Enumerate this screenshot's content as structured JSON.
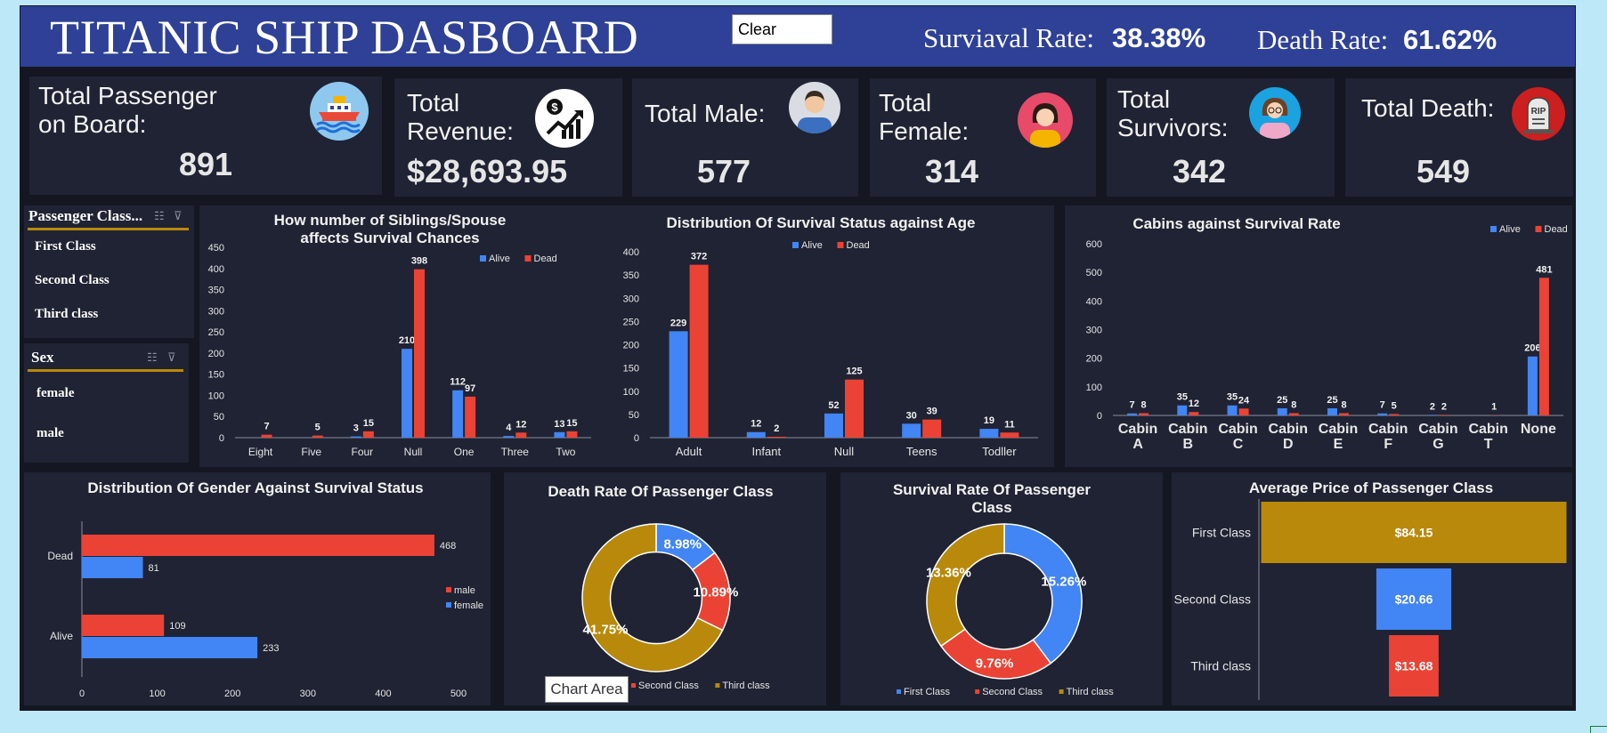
{
  "header": {
    "title": "TITANIC SHIP DASBOARD",
    "clear_label": "Clear",
    "survival_label": "Surviaval Rate:",
    "survival_value": "38.38%",
    "death_label": "Death Rate:",
    "death_value": "61.62%"
  },
  "kpis": [
    {
      "label": "Total Passenger\n on Board:",
      "value": "891",
      "icon": "cruise-ship-icon"
    },
    {
      "label": "Total\nRevenue:",
      "value": "$28,693.95",
      "icon": "money-growth-icon"
    },
    {
      "label": "Total Male:",
      "value": "577",
      "icon": "male-avatar-icon"
    },
    {
      "label": "Total\nFemale:",
      "value": "314",
      "icon": "female-avatar-icon"
    },
    {
      "label": "Total\nSurvivors:",
      "value": "342",
      "icon": "survivor-avatar-icon"
    },
    {
      "label": "Total Death:",
      "value": "549",
      "icon": "tombstone-icon"
    }
  ],
  "slicers": {
    "passenger_class": {
      "title": "Passenger Class...",
      "items": [
        "First Class",
        "Second Class",
        "Third class"
      ]
    },
    "sex": {
      "title": "Sex",
      "items": [
        "female",
        "male"
      ]
    }
  },
  "tooltip": "Chart Area",
  "colors": {
    "alive": "#4285f4",
    "dead": "#ea4335",
    "third": "#b8890b",
    "bg": "#1f2333",
    "header": "#2e4196"
  },
  "chart_data": [
    {
      "id": "siblings",
      "type": "bar",
      "title": "How number of Siblings/Spouse\naffects Survival Chances",
      "categories": [
        "Eight",
        "Five",
        "Four",
        "Null",
        "One",
        "Three",
        "Two"
      ],
      "series": [
        {
          "name": "Alive",
          "values": [
            0,
            0,
            3,
            210,
            112,
            4,
            13
          ]
        },
        {
          "name": "Dead",
          "values": [
            7,
            5,
            15,
            398,
            97,
            12,
            15
          ]
        }
      ],
      "ylim": [
        0,
        450
      ],
      "yticks": [
        0,
        50,
        100,
        150,
        200,
        250,
        300,
        350,
        400,
        450
      ],
      "legend": "top-right"
    },
    {
      "id": "age",
      "type": "bar",
      "title": "Distribution Of Survival Status against Age",
      "categories": [
        "Adult",
        "Infant",
        "Null",
        "Teens",
        "Todller"
      ],
      "series": [
        {
          "name": "Alive",
          "values": [
            229,
            12,
            52,
            30,
            19
          ]
        },
        {
          "name": "Dead",
          "values": [
            372,
            2,
            125,
            39,
            11
          ]
        }
      ],
      "ylim": [
        0,
        400
      ],
      "yticks": [
        0,
        50,
        100,
        150,
        200,
        250,
        300,
        350,
        400
      ],
      "legend": "top-center"
    },
    {
      "id": "cabins",
      "type": "bar",
      "title": "Cabins against Survival Rate",
      "categories": [
        "Cabin\nA",
        "Cabin\nB",
        "Cabin\nC",
        "Cabin\nD",
        "Cabin\nE",
        "Cabin\nF",
        "Cabin\nG",
        "Cabin\nT",
        "None"
      ],
      "series": [
        {
          "name": "Alive",
          "values": [
            7,
            35,
            35,
            25,
            25,
            7,
            2,
            0,
            206
          ]
        },
        {
          "name": "Dead",
          "values": [
            8,
            12,
            24,
            8,
            8,
            5,
            2,
            1,
            481
          ]
        }
      ],
      "ylim": [
        0,
        600
      ],
      "yticks": [
        0,
        100,
        200,
        300,
        400,
        500,
        600
      ],
      "legend": "top-right"
    },
    {
      "id": "gender",
      "type": "bar",
      "orientation": "horizontal",
      "title": "Distribution Of Gender Against Survival Status",
      "categories": [
        "Dead",
        "Alive"
      ],
      "series": [
        {
          "name": "male",
          "values": [
            468,
            109
          ]
        },
        {
          "name": "female",
          "values": [
            81,
            233
          ]
        }
      ],
      "xlim": [
        0,
        500
      ],
      "xticks": [
        0,
        100,
        200,
        300,
        400,
        500
      ],
      "legend": "right"
    },
    {
      "id": "death_rate",
      "type": "pie",
      "donut": true,
      "title": "Death Rate Of Passenger Class",
      "slices": [
        {
          "label": "First Class",
          "value": 8.98,
          "text": "8.98%"
        },
        {
          "label": "Second Class",
          "value": 10.89,
          "text": "10.89%"
        },
        {
          "label": "Third class",
          "value": 41.75,
          "text": "41.75%"
        }
      ],
      "legend": [
        "Second Class",
        "Third class"
      ]
    },
    {
      "id": "survival_rate",
      "type": "pie",
      "donut": true,
      "title": "Survival Rate Of Passenger\nClass",
      "slices": [
        {
          "label": "First Class",
          "value": 15.26,
          "text": "15.26%"
        },
        {
          "label": "Second Class",
          "value": 9.76,
          "text": "9.76%"
        },
        {
          "label": "Third class",
          "value": 13.36,
          "text": "13.36%"
        }
      ],
      "legend": [
        "First Class",
        "Second Class",
        "Third class"
      ]
    },
    {
      "id": "avg_price",
      "type": "bar",
      "orientation": "funnel",
      "title": "Average Price of Passenger Class",
      "categories": [
        "First Class",
        "Second Class",
        "Third class"
      ],
      "values": [
        84.15,
        20.66,
        13.68
      ],
      "labels": [
        "$84.15",
        "$20.66",
        "$13.68"
      ]
    }
  ]
}
